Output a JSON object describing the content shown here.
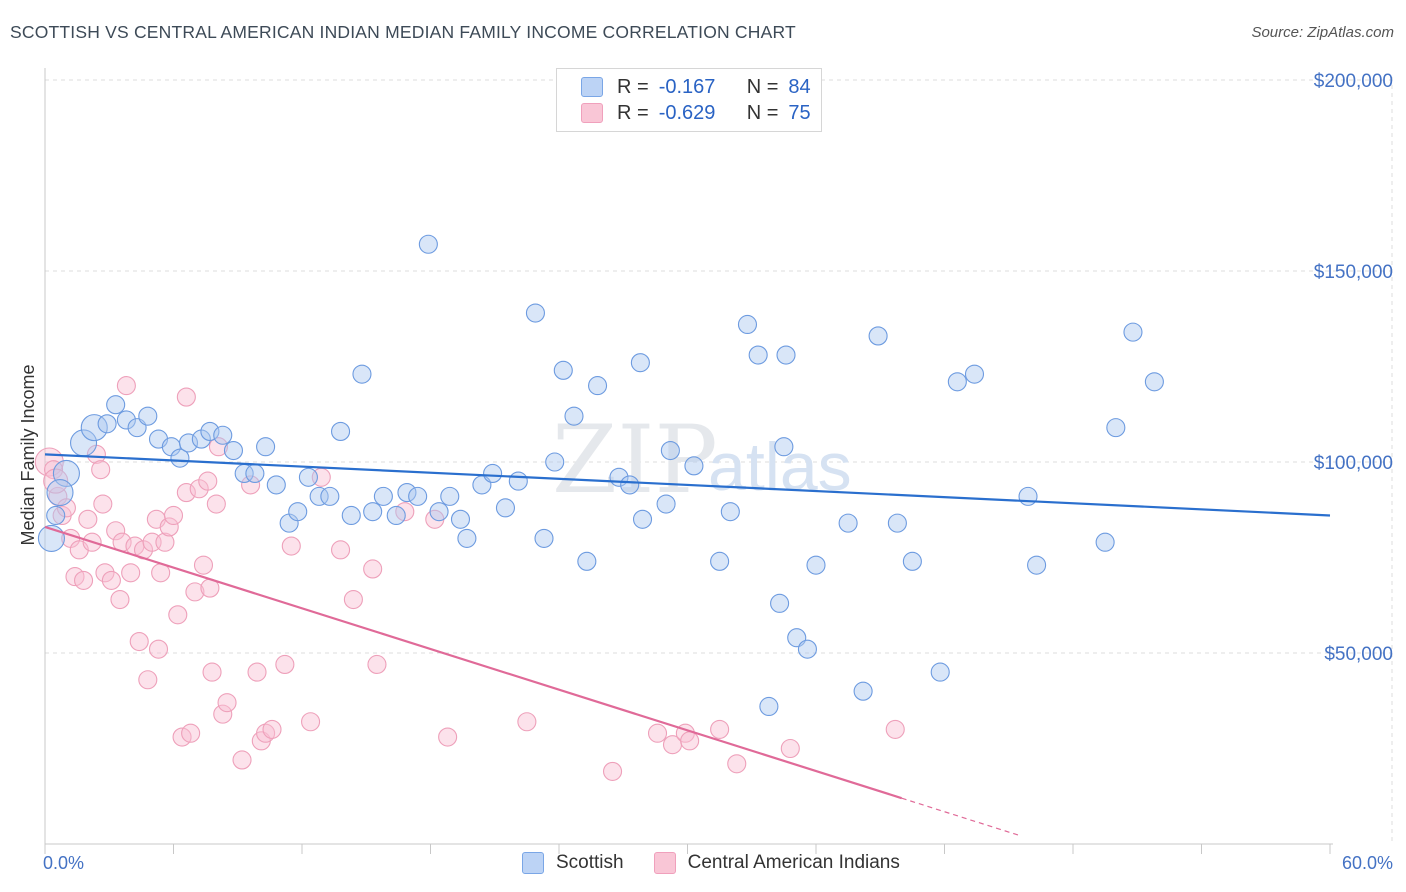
{
  "title": "SCOTTISH VS CENTRAL AMERICAN INDIAN MEDIAN FAMILY INCOME CORRELATION CHART",
  "source": "Source: ZipAtlas.com",
  "watermark": {
    "zip": "ZIP",
    "atlas": "atlas"
  },
  "legend": {
    "rows": [
      {
        "r_label": "R =",
        "r_value": "-0.167",
        "n_label": "N =",
        "n_value": "84"
      },
      {
        "r_label": "R =",
        "r_value": "-0.629",
        "n_label": "N =",
        "n_value": "75"
      }
    ]
  },
  "chart_data": {
    "type": "scatter",
    "title": "SCOTTISH VS CENTRAL AMERICAN INDIAN MEDIAN FAMILY INCOME CORRELATION CHART",
    "xlabel": "",
    "ylabel": "Median Family Income",
    "xlim": [
      0,
      60
    ],
    "ylim": [
      0,
      200000
    ],
    "x_tick_labels": [
      "0.0%",
      "60.0%"
    ],
    "y_ticks": [
      50000,
      100000,
      150000,
      200000
    ],
    "y_tick_labels": [
      "$50,000",
      "$100,000",
      "$150,000",
      "$200,000"
    ],
    "grid": true,
    "legend_position": "bottom-center",
    "colors": {
      "scottish": "#7aa6e6",
      "scottish_line": "#2a6fce",
      "central": "#f0a0bc",
      "central_line": "#e06a98"
    },
    "series": [
      {
        "name": "Scottish",
        "trend": {
          "x": [
            0,
            60
          ],
          "y": [
            102000,
            86000
          ]
        },
        "points": [
          [
            0.3,
            80000
          ],
          [
            1,
            97000
          ],
          [
            0.7,
            92000
          ],
          [
            1.8,
            105000
          ],
          [
            2.3,
            109000
          ],
          [
            2.9,
            110000
          ],
          [
            3.3,
            115000
          ],
          [
            3.8,
            111000
          ],
          [
            4.3,
            109000
          ],
          [
            4.8,
            112000
          ],
          [
            5.3,
            106000
          ],
          [
            5.9,
            104000
          ],
          [
            6.3,
            101000
          ],
          [
            6.7,
            105000
          ],
          [
            7.3,
            106000
          ],
          [
            7.7,
            108000
          ],
          [
            8.3,
            107000
          ],
          [
            8.8,
            103000
          ],
          [
            9.3,
            97000
          ],
          [
            9.8,
            97000
          ],
          [
            10.3,
            104000
          ],
          [
            10.8,
            94000
          ],
          [
            11.4,
            84000
          ],
          [
            11.8,
            87000
          ],
          [
            12.3,
            96000
          ],
          [
            12.8,
            91000
          ],
          [
            13.3,
            91000
          ],
          [
            13.8,
            108000
          ],
          [
            14.3,
            86000
          ],
          [
            14.8,
            123000
          ],
          [
            15.3,
            87000
          ],
          [
            15.8,
            91000
          ],
          [
            16.4,
            86000
          ],
          [
            16.9,
            92000
          ],
          [
            17.4,
            91000
          ],
          [
            17.9,
            157000
          ],
          [
            18.4,
            87000
          ],
          [
            18.9,
            91000
          ],
          [
            19.4,
            85000
          ],
          [
            19.7,
            80000
          ],
          [
            20.4,
            94000
          ],
          [
            20.9,
            97000
          ],
          [
            21.5,
            88000
          ],
          [
            22.1,
            95000
          ],
          [
            22.9,
            139000
          ],
          [
            23.3,
            80000
          ],
          [
            23.8,
            100000
          ],
          [
            24.2,
            124000
          ],
          [
            24.7,
            112000
          ],
          [
            25.3,
            74000
          ],
          [
            25.8,
            120000
          ],
          [
            26.8,
            96000
          ],
          [
            27.3,
            94000
          ],
          [
            27.8,
            126000
          ],
          [
            27.9,
            85000
          ],
          [
            29,
            89000
          ],
          [
            29.2,
            103000
          ],
          [
            30.3,
            99000
          ],
          [
            31.5,
            74000
          ],
          [
            32,
            87000
          ],
          [
            32.8,
            136000
          ],
          [
            33.3,
            128000
          ],
          [
            33.8,
            36000
          ],
          [
            34.3,
            63000
          ],
          [
            34.5,
            104000
          ],
          [
            34.6,
            128000
          ],
          [
            35.1,
            54000
          ],
          [
            35.6,
            51000
          ],
          [
            36,
            73000
          ],
          [
            37.5,
            84000
          ],
          [
            38.2,
            40000
          ],
          [
            38.9,
            133000
          ],
          [
            39.8,
            84000
          ],
          [
            40.5,
            74000
          ],
          [
            41.8,
            45000
          ],
          [
            42.6,
            121000
          ],
          [
            43.4,
            123000
          ],
          [
            45.9,
            91000
          ],
          [
            46.3,
            73000
          ],
          [
            49.5,
            79000
          ],
          [
            50,
            109000
          ],
          [
            50.8,
            134000
          ],
          [
            51.8,
            121000
          ],
          [
            0.5,
            86000
          ]
        ]
      },
      {
        "name": "Central American Indians",
        "trend": {
          "x": [
            0,
            40
          ],
          "y": [
            83000,
            12000
          ]
        },
        "points": [
          [
            0.2,
            100000
          ],
          [
            0.4,
            98000
          ],
          [
            0.6,
            91000
          ],
          [
            0.8,
            86000
          ],
          [
            1,
            88000
          ],
          [
            1.2,
            80000
          ],
          [
            1.4,
            70000
          ],
          [
            1.6,
            77000
          ],
          [
            1.8,
            69000
          ],
          [
            2,
            85000
          ],
          [
            2.2,
            79000
          ],
          [
            2.4,
            102000
          ],
          [
            2.6,
            98000
          ],
          [
            2.7,
            89000
          ],
          [
            2.8,
            71000
          ],
          [
            3.1,
            69000
          ],
          [
            3.3,
            82000
          ],
          [
            3.5,
            64000
          ],
          [
            3.6,
            79000
          ],
          [
            3.8,
            120000
          ],
          [
            4,
            71000
          ],
          [
            4.2,
            78000
          ],
          [
            4.4,
            53000
          ],
          [
            4.6,
            77000
          ],
          [
            4.8,
            43000
          ],
          [
            5,
            79000
          ],
          [
            5.2,
            85000
          ],
          [
            5.3,
            51000
          ],
          [
            5.4,
            71000
          ],
          [
            5.6,
            79000
          ],
          [
            5.8,
            83000
          ],
          [
            6,
            86000
          ],
          [
            6.2,
            60000
          ],
          [
            6.4,
            28000
          ],
          [
            6.6,
            117000
          ],
          [
            6.6,
            92000
          ],
          [
            6.8,
            29000
          ],
          [
            7,
            66000
          ],
          [
            7.2,
            93000
          ],
          [
            7.4,
            73000
          ],
          [
            7.6,
            95000
          ],
          [
            7.7,
            67000
          ],
          [
            7.8,
            45000
          ],
          [
            8,
            89000
          ],
          [
            8.1,
            104000
          ],
          [
            8.3,
            34000
          ],
          [
            8.5,
            37000
          ],
          [
            9.2,
            22000
          ],
          [
            9.6,
            94000
          ],
          [
            9.9,
            45000
          ],
          [
            10.1,
            27000
          ],
          [
            10.3,
            29000
          ],
          [
            10.6,
            30000
          ],
          [
            11.2,
            47000
          ],
          [
            11.5,
            78000
          ],
          [
            12.4,
            32000
          ],
          [
            12.9,
            96000
          ],
          [
            13.8,
            77000
          ],
          [
            14.4,
            64000
          ],
          [
            15.3,
            72000
          ],
          [
            15.5,
            47000
          ],
          [
            16.8,
            87000
          ],
          [
            18.2,
            85000
          ],
          [
            18.8,
            28000
          ],
          [
            22.5,
            32000
          ],
          [
            26.5,
            19000
          ],
          [
            28.6,
            29000
          ],
          [
            29.3,
            26000
          ],
          [
            29.9,
            29000
          ],
          [
            30.1,
            27000
          ],
          [
            31.5,
            30000
          ],
          [
            32.3,
            21000
          ],
          [
            34.8,
            25000
          ],
          [
            39.7,
            30000
          ],
          [
            0.5,
            95000
          ]
        ]
      }
    ]
  }
}
